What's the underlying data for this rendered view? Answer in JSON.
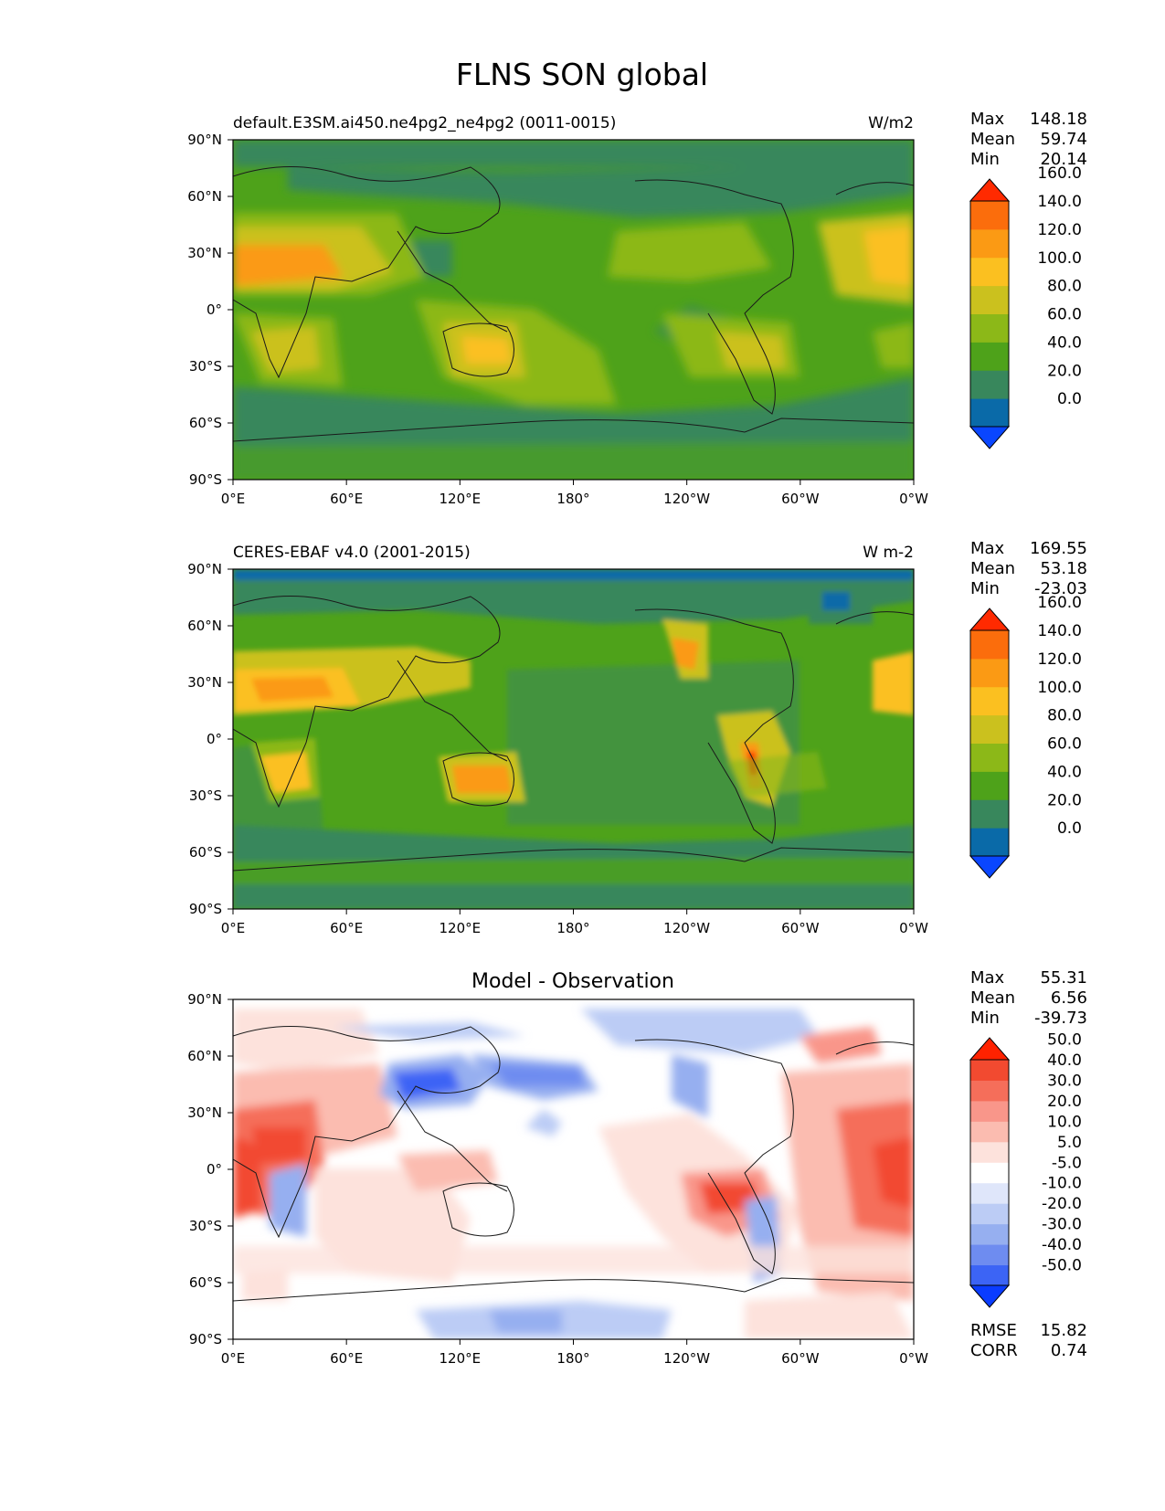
{
  "page_title": "FLNS SON global",
  "chart_data": [
    {
      "type": "heatmap",
      "title_left": "default.E3SM.ai450.ne4pg2_ne4pg2 (0011-0015)",
      "title_right": "W/m2",
      "title_center": "",
      "x_ticks": [
        "0°E",
        "60°E",
        "120°E",
        "180°",
        "120°W",
        "60°W",
        "0°W"
      ],
      "y_ticks": [
        "90°N",
        "60°N",
        "30°N",
        "0°",
        "30°S",
        "60°S",
        "90°S"
      ],
      "xlim": [
        0,
        360
      ],
      "ylim": [
        -90,
        90
      ],
      "stats": [
        {
          "label": "Max",
          "value": "148.18"
        },
        {
          "label": "Mean",
          "value": "59.74"
        },
        {
          "label": "Min",
          "value": "20.14"
        }
      ],
      "colorbar": {
        "levels": [
          "0.0",
          "20.0",
          "40.0",
          "60.0",
          "80.0",
          "100.0",
          "120.0",
          "140.0",
          "160.0"
        ],
        "colors": [
          "#0a46ff",
          "#0a6aa8",
          "#38875c",
          "#4ea21a",
          "#8cb818",
          "#cbc11e",
          "#fbc020",
          "#fb9a14",
          "#fb6d0c",
          "#ff2a00"
        ]
      }
    },
    {
      "type": "heatmap",
      "title_left": "CERES-EBAF v4.0 (2001-2015)",
      "title_right": "W m-2",
      "title_center": "",
      "x_ticks": [
        "0°E",
        "60°E",
        "120°E",
        "180°",
        "120°W",
        "60°W",
        "0°W"
      ],
      "y_ticks": [
        "90°N",
        "60°N",
        "30°N",
        "0°",
        "30°S",
        "60°S",
        "90°S"
      ],
      "xlim": [
        0,
        360
      ],
      "ylim": [
        -90,
        90
      ],
      "stats": [
        {
          "label": "Max",
          "value": "169.55"
        },
        {
          "label": "Mean",
          "value": "53.18"
        },
        {
          "label": "Min",
          "value": "-23.03"
        }
      ],
      "colorbar": {
        "levels": [
          "0.0",
          "20.0",
          "40.0",
          "60.0",
          "80.0",
          "100.0",
          "120.0",
          "140.0",
          "160.0"
        ],
        "colors": [
          "#0a46ff",
          "#0a6aa8",
          "#38875c",
          "#4ea21a",
          "#8cb818",
          "#cbc11e",
          "#fbc020",
          "#fb9a14",
          "#fb6d0c",
          "#ff2a00"
        ]
      }
    },
    {
      "type": "heatmap",
      "title_left": "",
      "title_right": "",
      "title_center": "Model - Observation",
      "x_ticks": [
        "0°E",
        "60°E",
        "120°E",
        "180°",
        "120°W",
        "60°W",
        "0°W"
      ],
      "y_ticks": [
        "90°N",
        "60°N",
        "30°N",
        "0°",
        "30°S",
        "60°S",
        "90°S"
      ],
      "xlim": [
        0,
        360
      ],
      "ylim": [
        -90,
        90
      ],
      "stats": [
        {
          "label": "Max",
          "value": "55.31"
        },
        {
          "label": "Mean",
          "value": "6.56"
        },
        {
          "label": "Min",
          "value": "-39.73"
        }
      ],
      "extra_stats": [
        {
          "label": "RMSE",
          "value": "15.82"
        },
        {
          "label": "CORR",
          "value": "0.74"
        }
      ],
      "colorbar": {
        "levels": [
          "-50.0",
          "-40.0",
          "-30.0",
          "-20.0",
          "-10.0",
          "-5.0",
          "5.0",
          "10.0",
          "20.0",
          "30.0",
          "40.0",
          "50.0"
        ],
        "colors": [
          "#0a3cff",
          "#3c64f5",
          "#6e8cf0",
          "#96aff0",
          "#bcccf5",
          "#dfe6fa",
          "#ffffff",
          "#fde2dc",
          "#fbbcb0",
          "#f9968a",
          "#f56e5a",
          "#f24a30",
          "#ff2200"
        ]
      }
    }
  ]
}
